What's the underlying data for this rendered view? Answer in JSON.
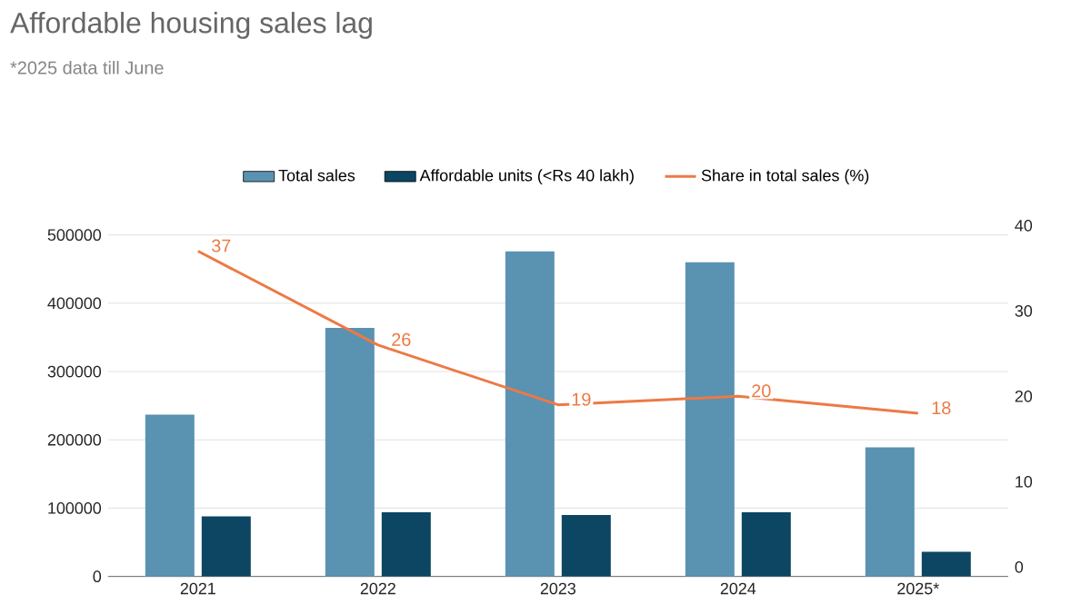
{
  "chart_data": {
    "type": "bar",
    "title": "Affordable housing sales lag",
    "subtitle": "*2025 data till June",
    "categories": [
      "2021",
      "2022",
      "2023",
      "2024",
      "2025*"
    ],
    "series": [
      {
        "name": "Total sales",
        "color": "#5a92b2",
        "values": [
          237000,
          364000,
          476000,
          460000,
          189000
        ]
      },
      {
        "name": "Affordable units (<Rs 40 lakh)",
        "color": "#0c4662",
        "values": [
          88000,
          94000,
          90000,
          94000,
          36000
        ]
      },
      {
        "name": "Share in total sales (%)",
        "type": "line",
        "axis": "y2",
        "color": "#ec7a45",
        "values": [
          37,
          26,
          19,
          20,
          18
        ],
        "value_labels": [
          "37",
          "26",
          "19",
          "20",
          "18"
        ]
      }
    ],
    "ylim": [
      0,
      500000
    ],
    "yticks": [
      0,
      100000,
      200000,
      300000,
      400000,
      500000
    ],
    "y2lim": [
      0,
      40
    ],
    "y2ticks": [
      0,
      10,
      20,
      30,
      40
    ],
    "grid": "y",
    "legend": "top"
  }
}
